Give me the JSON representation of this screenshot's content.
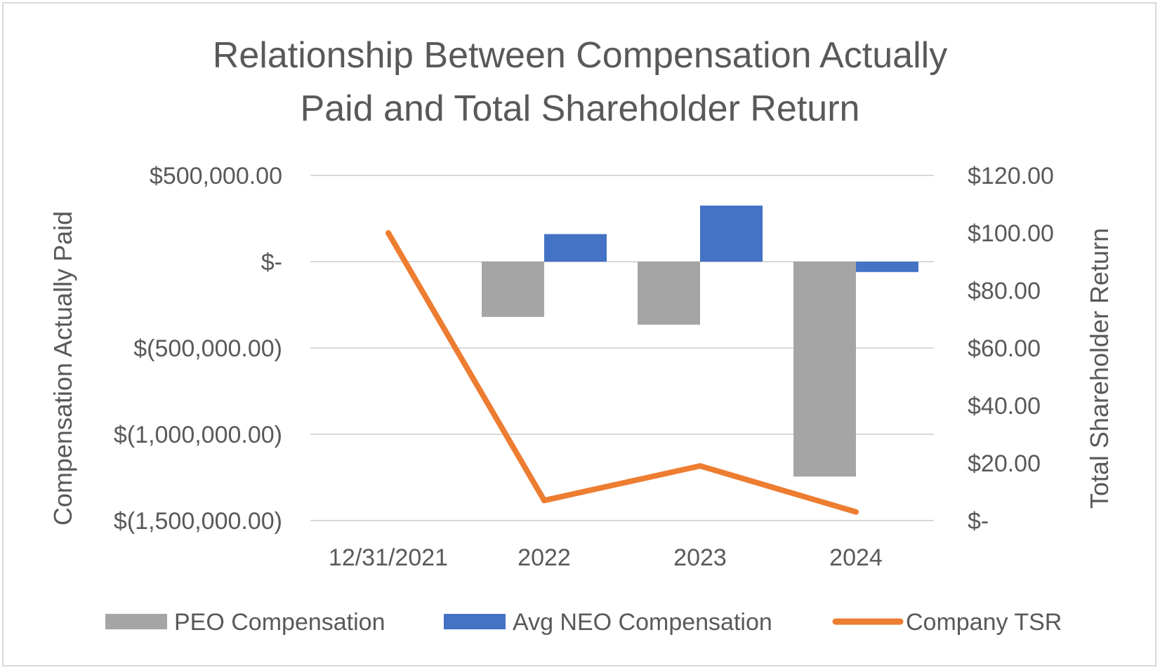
{
  "chart_data": {
    "type": "bar",
    "title_lines": [
      "Relationship Between Compensation Actually",
      "Paid and Total Shareholder Return"
    ],
    "categories": [
      "12/31/2021",
      "2022",
      "2023",
      "2024"
    ],
    "series": [
      {
        "name": "PEO Compensation",
        "type": "bar",
        "axis": "left",
        "color": "#a5a5a5",
        "values": [
          null,
          -320000,
          -365000,
          -1245000
        ]
      },
      {
        "name": "Avg NEO Compensation",
        "type": "bar",
        "axis": "left",
        "color": "#4472c4",
        "values": [
          null,
          160000,
          325000,
          -60000
        ]
      },
      {
        "name": "Company TSR",
        "type": "line",
        "axis": "right",
        "color": "#ed7d31",
        "values": [
          100.0,
          7.0,
          19.0,
          3.0
        ]
      }
    ],
    "left_axis": {
      "label": "Compensation Actually Paid",
      "ylim": [
        -1500000,
        500000
      ],
      "tick_values": [
        500000,
        0,
        -500000,
        -1000000,
        -1500000
      ],
      "tick_labels": [
        "$500,000.00",
        "$-",
        "$(500,000.00)",
        "$(1,000,000.00)",
        "$(1,500,000.00)"
      ]
    },
    "right_axis": {
      "label": "Total Shareholder Return",
      "ylim": [
        0,
        120
      ],
      "tick_values": [
        120,
        100,
        80,
        60,
        40,
        20,
        0
      ],
      "tick_labels": [
        "$120.00",
        "$100.00",
        "$80.00",
        "$60.00",
        "$40.00",
        "$20.00",
        "$-"
      ]
    },
    "grid": true,
    "legend_position": "bottom"
  }
}
